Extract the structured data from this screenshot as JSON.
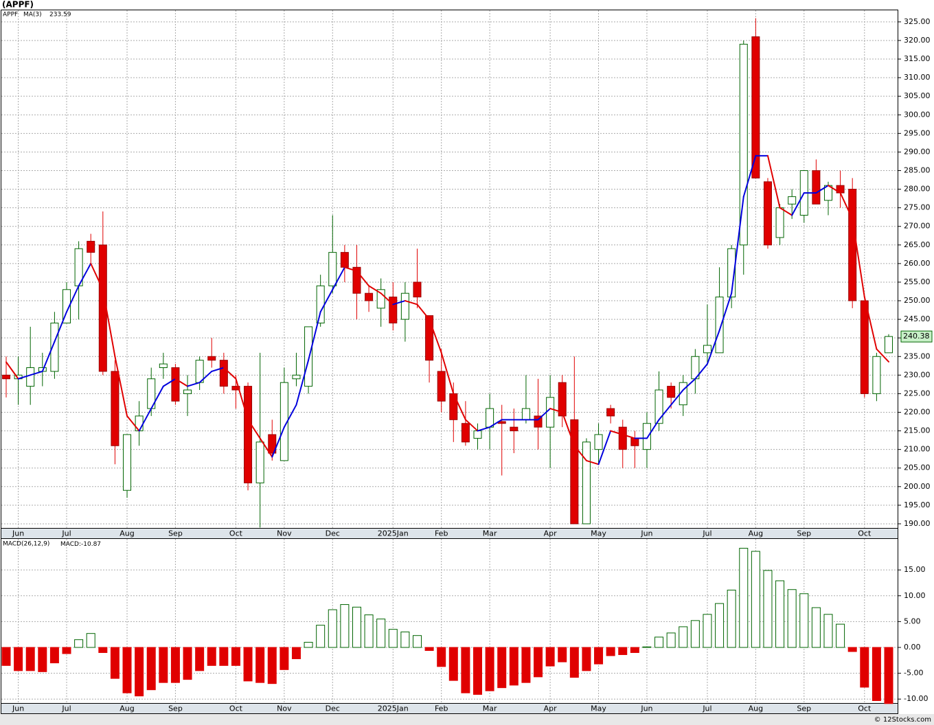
{
  "title": "(APPF)",
  "footer": "© 12Stocks.com",
  "chart_data": [
    {
      "type": "candlestick",
      "name": "APPF",
      "categories": [
        null,
        "Jun",
        null,
        null,
        null,
        "Jul",
        null,
        null,
        null,
        null,
        "Aug",
        null,
        null,
        null,
        "Sep",
        null,
        null,
        null,
        null,
        "Oct",
        null,
        null,
        null,
        "Nov",
        null,
        null,
        null,
        "Dec",
        null,
        null,
        null,
        null,
        "2025Jan",
        null,
        null,
        null,
        "Feb",
        null,
        null,
        null,
        "Mar",
        null,
        null,
        null,
        null,
        "Apr",
        null,
        null,
        null,
        "May",
        null,
        null,
        null,
        "Jun",
        null,
        null,
        null,
        null,
        "Jul",
        null,
        null,
        null,
        "Aug",
        null,
        null,
        null,
        "Sep",
        null,
        null,
        null,
        null,
        "Oct",
        null,
        null
      ],
      "open": [
        230,
        229,
        227,
        231,
        231,
        244,
        254,
        266,
        265,
        231,
        199,
        215,
        221,
        232,
        232,
        225,
        228,
        235,
        234,
        227,
        227,
        201,
        214,
        207,
        229,
        227,
        244,
        254,
        263,
        259,
        252,
        248,
        251,
        245,
        255,
        246,
        231,
        225,
        217,
        213,
        216,
        217.5,
        216,
        218,
        219,
        216,
        228,
        218,
        190,
        210,
        221,
        216,
        213,
        210,
        217,
        227,
        222,
        229,
        236,
        236,
        251,
        265,
        321,
        282,
        267,
        276,
        273,
        285,
        277,
        281,
        280,
        250,
        225,
        236
      ],
      "high": [
        235,
        235,
        243,
        236,
        247,
        255,
        266,
        268,
        274,
        234,
        214,
        223,
        232,
        236,
        233,
        230,
        235,
        240,
        236,
        230,
        228,
        236,
        218,
        232,
        236,
        243,
        257,
        273,
        265,
        265,
        254,
        256,
        255,
        255,
        264,
        246,
        237,
        228,
        223,
        217,
        225,
        222,
        221,
        230,
        229,
        230,
        230,
        235,
        213,
        217,
        222,
        218,
        215,
        220,
        231,
        228,
        230,
        237,
        249,
        259,
        265,
        320,
        326,
        283,
        276,
        280,
        285,
        288,
        282,
        285,
        283,
        250,
        236,
        241
      ],
      "low": [
        224,
        222,
        222,
        227,
        229,
        244,
        245,
        260,
        230,
        206,
        197,
        211,
        219,
        229,
        222,
        219,
        226,
        232,
        225,
        221,
        199,
        189,
        207,
        207,
        227,
        225,
        243,
        252,
        255,
        245,
        247,
        243,
        242,
        239,
        248,
        228,
        220,
        212,
        211,
        210,
        210,
        203,
        209,
        217,
        210,
        205,
        216,
        190,
        190,
        206,
        217,
        205,
        205,
        205,
        215,
        221,
        219,
        225,
        233,
        236,
        248,
        257,
        283,
        264,
        265,
        272,
        271,
        276,
        273,
        275,
        248,
        224,
        223,
        236
      ],
      "close": [
        229,
        230,
        232,
        232,
        244,
        253,
        264,
        263,
        231,
        211,
        214,
        219,
        229,
        233,
        223,
        226,
        234,
        234,
        227,
        226,
        201,
        212,
        209,
        228,
        230,
        243,
        254,
        263,
        259,
        252,
        250,
        253,
        244,
        252,
        251,
        234,
        223,
        218,
        212,
        215,
        221,
        217,
        215,
        221,
        216,
        224,
        219,
        190,
        212,
        214,
        219,
        210,
        211,
        217,
        226,
        224,
        228,
        235,
        238,
        251,
        264,
        319,
        283,
        265,
        275,
        278,
        285,
        276,
        281,
        279,
        250,
        225,
        235,
        240.38
      ],
      "up_color": "#006400",
      "down_color": "#e00000",
      "ma": {
        "name": "MA(3)",
        "rise_color": "#0000dd",
        "fall_color": "#e00000",
        "values": [
          233.5,
          229,
          230,
          231,
          239,
          247,
          254,
          260,
          253,
          235,
          219,
          215,
          221,
          227,
          229,
          227,
          228,
          231,
          232,
          229,
          218,
          213,
          208,
          216,
          222,
          234,
          247,
          253,
          259,
          258,
          254,
          252,
          249,
          250,
          249,
          245,
          236,
          225,
          218,
          215,
          216,
          218,
          218,
          218,
          218,
          221,
          220,
          211,
          207,
          206,
          215,
          214,
          213,
          213,
          218,
          222,
          226,
          229,
          233,
          242,
          252,
          278,
          289,
          289,
          275,
          273,
          279,
          279,
          281,
          279,
          272,
          251,
          237,
          233.59
        ]
      },
      "ylim": [
        188.7,
        328.3
      ],
      "yticks": [
        {
          "value": 190,
          "label": "190.00"
        },
        {
          "value": 195,
          "label": "195.00"
        },
        {
          "value": 200,
          "label": "200.00"
        },
        {
          "value": 205,
          "label": "205.00"
        },
        {
          "value": 210,
          "label": "210.00"
        },
        {
          "value": 215,
          "label": "215.00"
        },
        {
          "value": 220,
          "label": "220.00"
        },
        {
          "value": 225,
          "label": "225.00"
        },
        {
          "value": 230,
          "label": "230.00"
        },
        {
          "value": 235,
          "label": "235.00"
        },
        {
          "value": 240,
          "label": "240.00"
        },
        {
          "value": 245,
          "label": "245.00"
        },
        {
          "value": 250,
          "label": "250.00"
        },
        {
          "value": 255,
          "label": "255.00"
        },
        {
          "value": 260,
          "label": "260.00"
        },
        {
          "value": 265,
          "label": "265.00"
        },
        {
          "value": 270,
          "label": "270.00"
        },
        {
          "value": 275,
          "label": "275.00"
        },
        {
          "value": 280,
          "label": "280.00"
        },
        {
          "value": 285,
          "label": "285.00"
        },
        {
          "value": 290,
          "label": "290.00"
        },
        {
          "value": 295,
          "label": "295.00"
        },
        {
          "value": 300,
          "label": "300.00"
        },
        {
          "value": 305,
          "label": "305.00"
        },
        {
          "value": 310,
          "label": "310.00"
        },
        {
          "value": 315,
          "label": "315.00"
        },
        {
          "value": 320,
          "label": "320.00"
        },
        {
          "value": 325,
          "label": "325.00"
        }
      ],
      "grid": true
    },
    {
      "type": "bar",
      "title": "MACD(26,12,9)",
      "series": [
        {
          "name": "MACD:",
          "pos_color": "#006400",
          "neg_color": "#e00000",
          "values": [
            -3.5,
            -4.5,
            -4.5,
            -4.7,
            -3,
            -1.2,
            1.5,
            2.7,
            -1,
            -6,
            -8.8,
            -9.4,
            -8.2,
            -6.8,
            -6.8,
            -6.2,
            -4.5,
            -3.5,
            -3.5,
            -3.5,
            -6.5,
            -6.8,
            -7,
            -4.3,
            -2.2,
            1,
            4.3,
            7.3,
            8.3,
            7.8,
            6.3,
            5.5,
            3.5,
            3,
            2.3,
            -0.6,
            -3.7,
            -6.4,
            -8.8,
            -9.1,
            -8.4,
            -7.8,
            -7.3,
            -6.8,
            -5.7,
            -3.6,
            -2.8,
            -5.8,
            -4.5,
            -3.2,
            -1.6,
            -1.4,
            -1,
            0.1,
            2,
            2.8,
            4,
            5.2,
            6.4,
            8.5,
            11.1,
            19.2,
            18.6,
            14.9,
            12.9,
            11.2,
            10.4,
            7.7,
            6.4,
            4.5,
            -0.8,
            -7.7,
            -10.3,
            -10.87
          ]
        }
      ],
      "ylim": [
        -10.9,
        21.0
      ],
      "yticks": [
        {
          "value": -10,
          "label": "-10.00"
        },
        {
          "value": -5,
          "label": "-5.00"
        },
        {
          "value": 0,
          "label": "0.00"
        },
        {
          "value": 5,
          "label": "5.00"
        },
        {
          "value": 10,
          "label": "10.00"
        },
        {
          "value": 15,
          "label": "15.00"
        }
      ],
      "grid": true
    }
  ]
}
